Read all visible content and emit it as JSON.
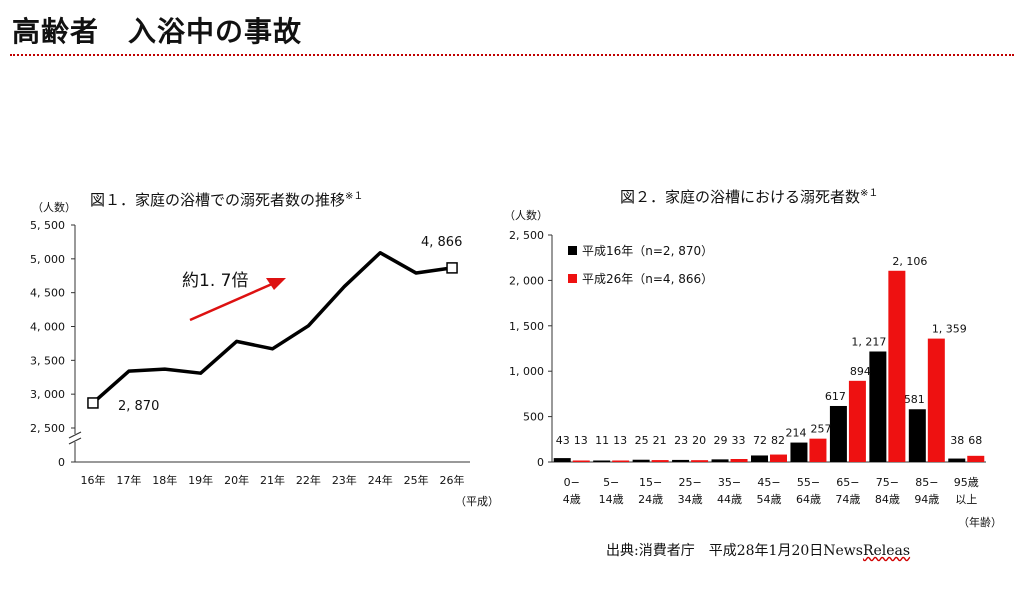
{
  "page": {
    "title": "高齢者　入浴中の事故",
    "source_prefix": "出典:消費者庁　平成28年1月20日News",
    "source_suffix": "Releas"
  },
  "colors": {
    "accent": "#c00000",
    "black_series": "#000000",
    "red_series": "#ee1111"
  },
  "chart_data": [
    {
      "type": "line",
      "title": "図１．家庭の浴槽での溺死者数の推移",
      "title_note": "※１",
      "ylabel": "（人数）",
      "xlabel": "（平成）",
      "x": [
        "16年",
        "17年",
        "18年",
        "19年",
        "20年",
        "21年",
        "22年",
        "23年",
        "24年",
        "25年",
        "26年"
      ],
      "values": [
        2870,
        3340,
        3370,
        3310,
        3780,
        3670,
        4010,
        4590,
        5090,
        4790,
        4866
      ],
      "yticks": [
        "0",
        "2, 500",
        "3, 000",
        "3, 500",
        "4, 000",
        "4, 500",
        "5, 000",
        "5, 500"
      ],
      "ylim": [
        2500,
        5500
      ],
      "axis_break": true,
      "annotations": {
        "start": "2, 870",
        "end": "4, 866",
        "growth": "約1. 7倍"
      }
    },
    {
      "type": "bar",
      "title": "図２．家庭の浴槽における溺死者数",
      "title_note": "※１",
      "ylabel": "（人数）",
      "xlabel": "（年齢）",
      "categories": [
        [
          "0−",
          "4歳"
        ],
        [
          "5−",
          "14歳"
        ],
        [
          "15−",
          "24歳"
        ],
        [
          "25−",
          "34歳"
        ],
        [
          "35−",
          "44歳"
        ],
        [
          "45−",
          "54歳"
        ],
        [
          "55−",
          "64歳"
        ],
        [
          "65−",
          "74歳"
        ],
        [
          "75−",
          "84歳"
        ],
        [
          "85−",
          "94歳"
        ],
        [
          "95歳",
          "以上"
        ]
      ],
      "yticks": [
        "0",
        "500",
        "1, 000",
        "1, 500",
        "2, 000",
        "2, 500"
      ],
      "ylim": [
        0,
        2500
      ],
      "series": [
        {
          "name": "平成16年（n=2, 870）",
          "color": "#000000",
          "values": [
            43,
            11,
            25,
            23,
            29,
            72,
            214,
            617,
            1217,
            581,
            38
          ],
          "labels": [
            "43",
            "11",
            "25",
            "23",
            "29",
            "72",
            "214",
            "617",
            "1, 217",
            "581",
            "38"
          ]
        },
        {
          "name": "平成26年（n=4, 866）",
          "color": "#ee1111",
          "values": [
            13,
            13,
            21,
            20,
            33,
            82,
            257,
            894,
            2106,
            1359,
            68
          ],
          "labels": [
            "13",
            "13",
            "21",
            "20",
            "33",
            "82",
            "257",
            "894",
            "2, 106",
            "1, 359",
            "68"
          ]
        }
      ]
    }
  ]
}
